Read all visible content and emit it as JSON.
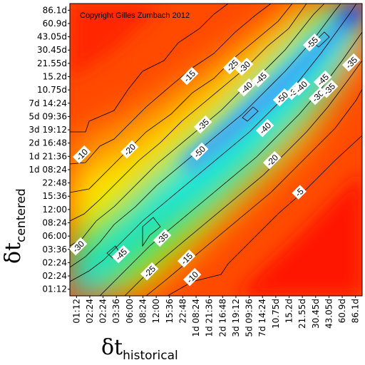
{
  "chart_data": {
    "type": "heatmap",
    "title": "",
    "copyright": "Copyright Gilles Zumbach 2012",
    "xlabel": {
      "symbol": "δt",
      "subscript": "historical"
    },
    "ylabel": {
      "symbol": "δt",
      "subscript": "centered"
    },
    "x_ticks": [
      "01:12",
      "02:24",
      "02:24",
      "03:36",
      "06:00",
      "08:24",
      "12:00",
      "15:36",
      "22:48",
      "1d 08:24",
      "1d 21:36",
      "2d 16:48",
      "3d 19:12",
      "5d 09:36",
      "7d 14:24",
      "10.75d",
      "15.2d",
      "21.55d",
      "30.45d",
      "43.05d",
      "60.9d",
      "86.1d"
    ],
    "y_ticks": [
      "86.1d",
      "60.9d",
      "43.05d",
      "30.45d",
      "21.55d",
      "15.2d",
      "10.75d",
      "7d 14:24",
      "5d 09:36",
      "3d 19:12",
      "2d 16:48",
      "1d 21:36",
      "1d 08:24",
      "22:48",
      "15:36",
      "12:00",
      "08:24",
      "06:00",
      "03:36",
      "02:24",
      "02:24",
      "01:12"
    ],
    "colorscale": [
      "#ff1a00",
      "#ff8a00",
      "#ffe600",
      "#00e600",
      "#00e6f0",
      "#1a40ff"
    ],
    "contour_labels": [
      "-5",
      "-10",
      "-10",
      "-15",
      "-15",
      "-20",
      "-20",
      "-25",
      "-25",
      "-30",
      "-30",
      "-30",
      "-30",
      "-35",
      "-35",
      "-35",
      "-35",
      "-40",
      "-40",
      "-40",
      "-45",
      "-45",
      "-45",
      "-50",
      "-50",
      "-55"
    ]
  }
}
